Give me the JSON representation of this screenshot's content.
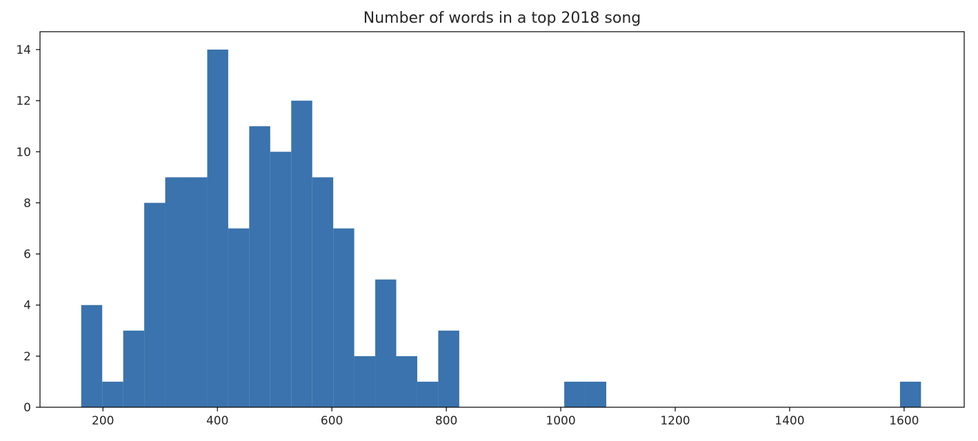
{
  "chart_data": {
    "type": "bar",
    "title": "Number of words in a top 2018 song",
    "xlabel": "",
    "ylabel": "",
    "bar_color": "#3a73ad",
    "xlim": [
      90,
      1705
    ],
    "ylim": [
      0,
      14.7
    ],
    "xticks": [
      200,
      400,
      600,
      800,
      1000,
      1200,
      1400,
      1600
    ],
    "yticks": [
      0,
      2,
      4,
      6,
      8,
      10,
      12,
      14
    ],
    "bin_width": 36.7,
    "bins": [
      {
        "x0": 162,
        "count": 4
      },
      {
        "x0": 198.7,
        "count": 1
      },
      {
        "x0": 235.4,
        "count": 3
      },
      {
        "x0": 272.1,
        "count": 8
      },
      {
        "x0": 308.8,
        "count": 9
      },
      {
        "x0": 345.5,
        "count": 9
      },
      {
        "x0": 382.2,
        "count": 14
      },
      {
        "x0": 418.9,
        "count": 7
      },
      {
        "x0": 455.6,
        "count": 11
      },
      {
        "x0": 492.3,
        "count": 10
      },
      {
        "x0": 529.0,
        "count": 12
      },
      {
        "x0": 565.7,
        "count": 9
      },
      {
        "x0": 602.4,
        "count": 7
      },
      {
        "x0": 639.1,
        "count": 2
      },
      {
        "x0": 675.8,
        "count": 5
      },
      {
        "x0": 712.5,
        "count": 2
      },
      {
        "x0": 749.2,
        "count": 1
      },
      {
        "x0": 785.9,
        "count": 3
      },
      {
        "x0": 1006.1,
        "count": 1
      },
      {
        "x0": 1042.8,
        "count": 1
      },
      {
        "x0": 1592.8,
        "count": 1
      }
    ],
    "grid": false,
    "legend": "none"
  }
}
